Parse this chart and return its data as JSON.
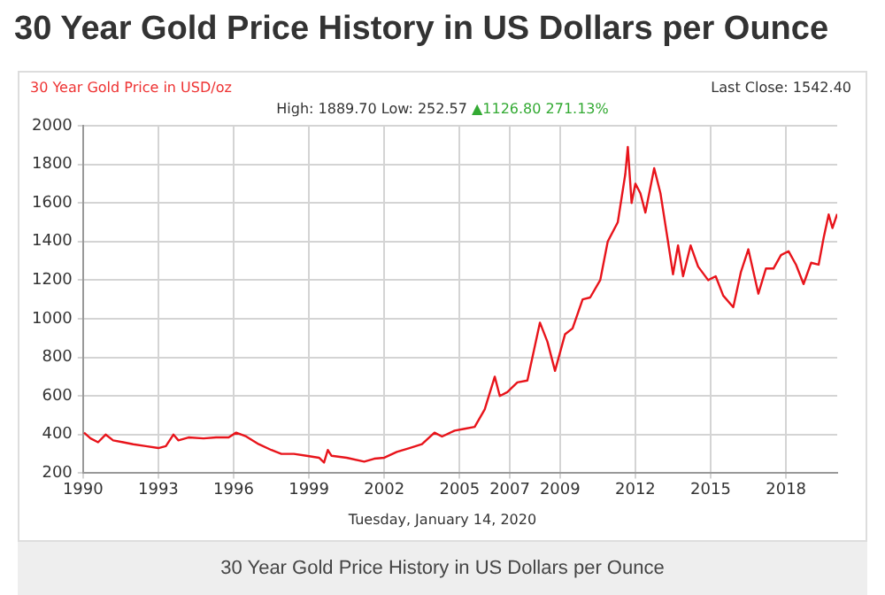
{
  "chart_data": {
    "type": "line",
    "title": "30 Year Gold Price History in US Dollars per Ounce",
    "subtitle": "30 Year Gold Price in USD/oz",
    "annotations": [
      "Last Close: 1542.40",
      "High: 1889.70 Low: 252.57",
      "▲1126.80 271.13%",
      "Tuesday, January 14, 2020",
      "30 Year Gold Price History in US Dollars per Ounce"
    ],
    "series": [
      {
        "color": "#e8141b",
        "x": [
          1990.04,
          1990.3,
          1990.6,
          1990.9,
          1991.2,
          1991.6,
          1992.0,
          1992.5,
          1993.0,
          1993.3,
          1993.6,
          1993.8,
          1994.2,
          1994.8,
          1995.3,
          1995.8,
          1996.1,
          1996.5,
          1997.0,
          1997.5,
          1997.9,
          1998.4,
          1998.9,
          1999.4,
          1999.6,
          1999.75,
          1999.9,
          2000.5,
          2001.2,
          2001.6,
          2002.0,
          2002.5,
          2003.0,
          2003.5,
          2004.0,
          2004.3,
          2004.8,
          2005.2,
          2005.6,
          2006.0,
          2006.4,
          2006.6,
          2006.9,
          2007.3,
          2007.7,
          2008.2,
          2008.5,
          2008.8,
          2009.2,
          2009.5,
          2009.9,
          2010.2,
          2010.6,
          2010.9,
          2011.3,
          2011.6,
          2011.7,
          2011.85,
          2012.0,
          2012.2,
          2012.4,
          2012.75,
          2013.0,
          2013.3,
          2013.5,
          2013.7,
          2013.9,
          2014.2,
          2014.5,
          2014.9,
          2015.2,
          2015.5,
          2015.9,
          2016.2,
          2016.5,
          2016.9,
          2017.2,
          2017.5,
          2017.8,
          2018.1,
          2018.4,
          2018.7,
          2019.0,
          2019.3,
          2019.5,
          2019.7,
          2019.85,
          2020.04
        ],
        "values": [
          410,
          380,
          360,
          400,
          370,
          360,
          350,
          340,
          330,
          340,
          400,
          370,
          385,
          380,
          385,
          385,
          410,
          390,
          350,
          320,
          300,
          300,
          290,
          280,
          255,
          320,
          290,
          280,
          260,
          275,
          280,
          310,
          330,
          350,
          410,
          390,
          420,
          430,
          440,
          530,
          700,
          600,
          620,
          670,
          680,
          980,
          880,
          730,
          920,
          950,
          1100,
          1110,
          1200,
          1400,
          1500,
          1750,
          1890,
          1600,
          1700,
          1650,
          1550,
          1780,
          1650,
          1400,
          1230,
          1380,
          1220,
          1380,
          1270,
          1200,
          1220,
          1120,
          1060,
          1240,
          1360,
          1130,
          1260,
          1260,
          1330,
          1350,
          1280,
          1180,
          1290,
          1280,
          1420,
          1540,
          1470,
          1542.4
        ]
      }
    ],
    "xlim": [
      1990,
      2020.04
    ],
    "ylim": [
      200,
      2000
    ],
    "xticks": [
      1990,
      1993,
      1996,
      1999,
      2002,
      2005,
      2007,
      2009,
      2012,
      2015,
      2018
    ],
    "yticks": [
      200,
      400,
      600,
      800,
      1000,
      1200,
      1400,
      1600,
      1800,
      2000
    ],
    "grid": true,
    "legend": false,
    "marker": "none",
    "line_style": "solid"
  }
}
